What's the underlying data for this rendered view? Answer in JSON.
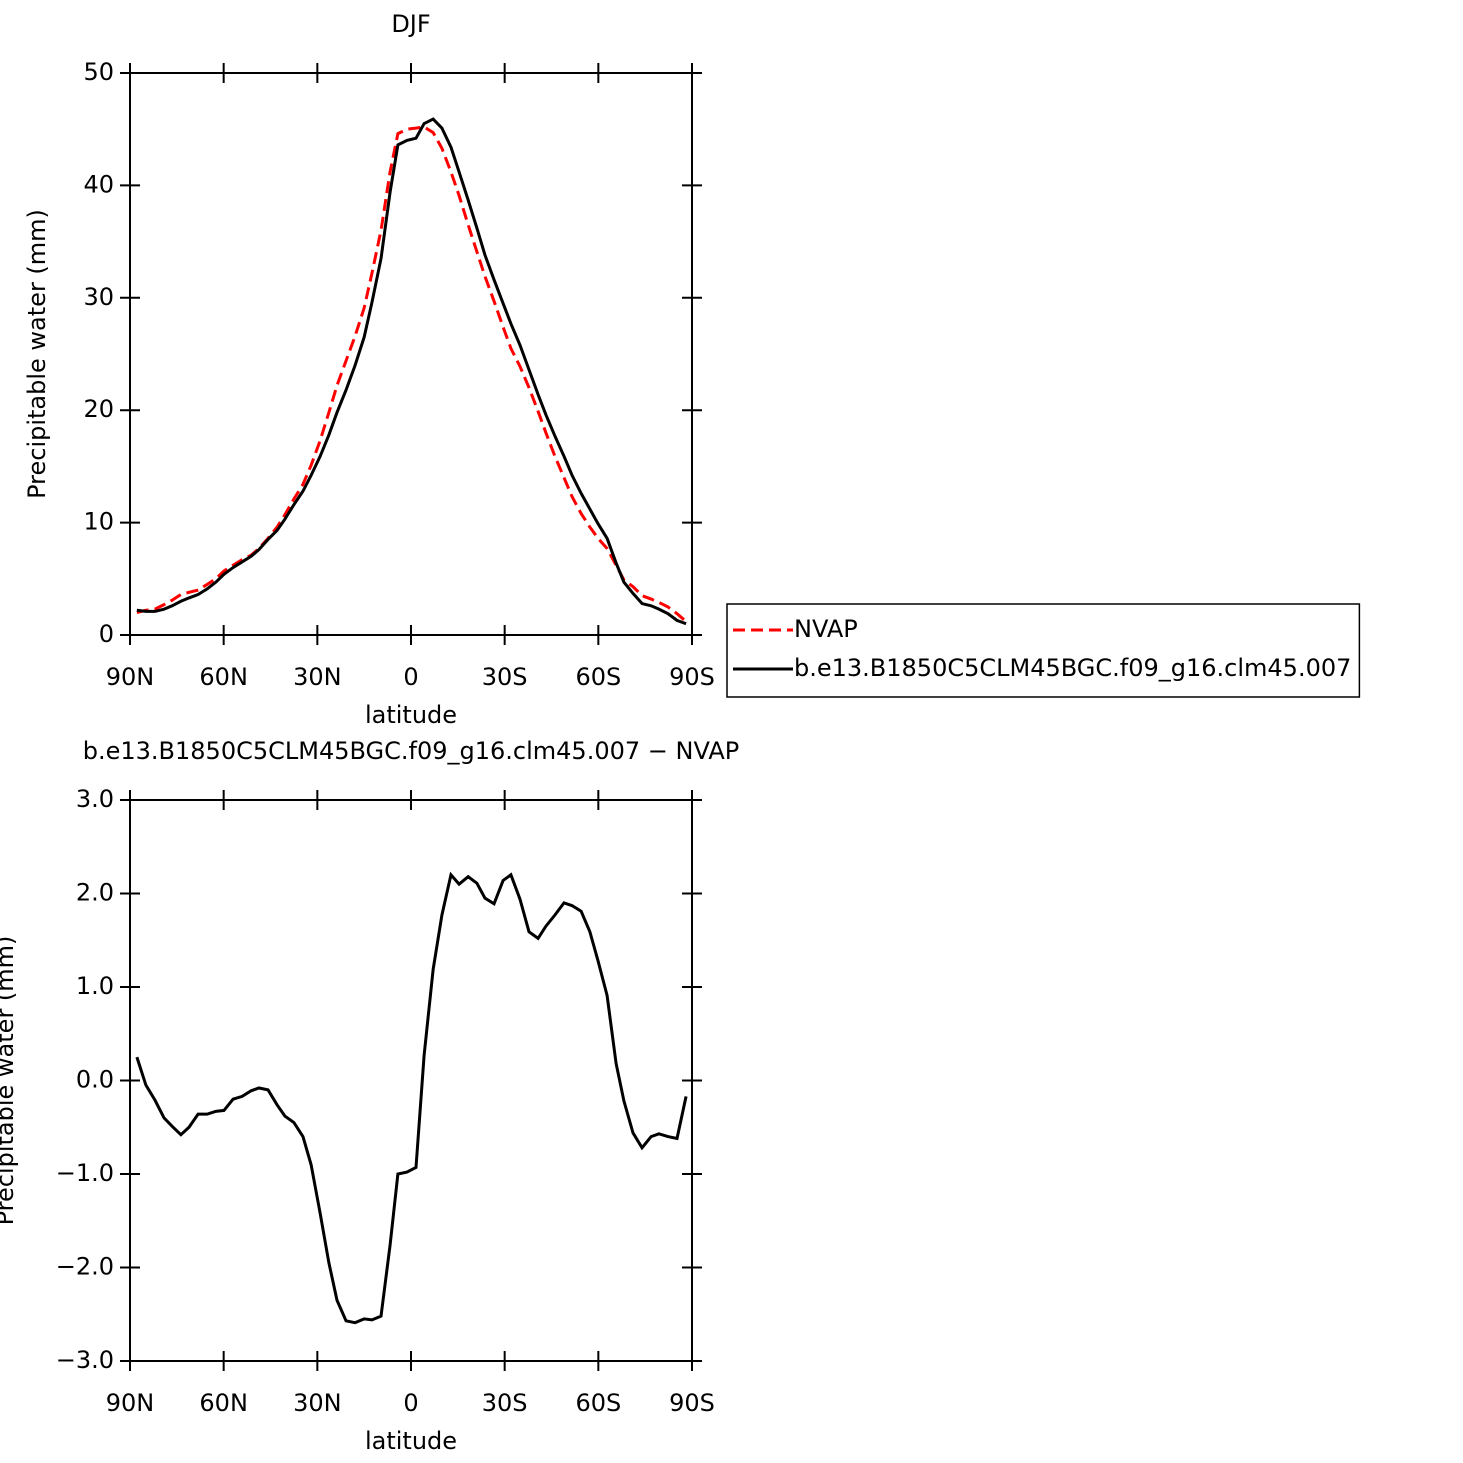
{
  "chart_data": [
    {
      "type": "line",
      "title": "DJF",
      "ylabel": "Precipitable water (mm)",
      "xlabel": "latitude",
      "x": [
        87.8,
        84.9,
        82.0,
        79.1,
        76.5,
        73.7,
        71.1,
        68.2,
        65.3,
        62.5,
        59.9,
        57.0,
        54.1,
        51.2,
        48.7,
        45.8,
        42.9,
        40.4,
        37.5,
        34.6,
        32.0,
        29.1,
        26.3,
        23.7,
        20.8,
        17.9,
        15.0,
        12.5,
        9.6,
        6.7,
        4.2,
        1.3,
        -1.6,
        -4.2,
        -7.1,
        -9.9,
        -12.8,
        -15.4,
        -18.3,
        -21.1,
        -23.7,
        -26.6,
        -29.5,
        -32.0,
        -34.9,
        -37.8,
        -40.7,
        -43.2,
        -46.1,
        -49.0,
        -51.6,
        -54.5,
        -57.3,
        -59.9,
        -62.8,
        -65.7,
        -68.2,
        -71.1,
        -74.0,
        -76.9,
        -79.4,
        -82.3,
        -85.2,
        -88.1
      ],
      "series": [
        {
          "name": "NVAP",
          "color": "#ff0000",
          "style": "dashed",
          "values": [
            2.0,
            2.2,
            2.3,
            2.7,
            3.1,
            3.6,
            3.8,
            4.0,
            4.5,
            5.0,
            5.7,
            6.2,
            6.7,
            7.1,
            7.7,
            8.6,
            9.6,
            10.7,
            12.1,
            13.4,
            15.1,
            17.3,
            19.8,
            22.2,
            24.4,
            26.6,
            29.1,
            32.2,
            36.0,
            41.2,
            44.6,
            45.0,
            45.1,
            45.2,
            44.7,
            43.3,
            41.2,
            39.1,
            36.5,
            34.1,
            31.9,
            29.7,
            27.4,
            25.5,
            23.9,
            22.0,
            19.9,
            18.0,
            15.9,
            14.0,
            12.3,
            10.8,
            9.6,
            8.6,
            7.7,
            6.2,
            4.9,
            4.3,
            3.5,
            3.2,
            2.9,
            2.5,
            1.9,
            1.2
          ]
        },
        {
          "name": "b.e13.B1850C5CLM45BGC.f09_g16.clm45.007",
          "color": "#000000",
          "style": "solid",
          "values": [
            2.2,
            2.1,
            2.1,
            2.3,
            2.6,
            3.0,
            3.3,
            3.6,
            4.1,
            4.7,
            5.4,
            6.0,
            6.5,
            7.0,
            7.6,
            8.5,
            9.3,
            10.3,
            11.6,
            12.8,
            14.2,
            15.9,
            17.8,
            19.8,
            21.8,
            24.0,
            26.5,
            29.6,
            33.5,
            39.4,
            43.6,
            44.0,
            44.2,
            45.5,
            45.9,
            45.1,
            43.4,
            41.2,
            38.7,
            36.2,
            33.8,
            31.6,
            29.5,
            27.7,
            25.8,
            23.6,
            21.4,
            19.6,
            17.7,
            15.9,
            14.2,
            12.6,
            11.2,
            9.9,
            8.6,
            6.4,
            4.7,
            3.7,
            2.8,
            2.6,
            2.3,
            1.9,
            1.3,
            1.0
          ]
        }
      ],
      "xlim": [
        90,
        -90
      ],
      "xticks": [
        {
          "value": 90,
          "label": "90N"
        },
        {
          "value": 60,
          "label": "60N"
        },
        {
          "value": 30,
          "label": "30N"
        },
        0,
        {
          "value": -30,
          "label": "30S"
        },
        {
          "value": -60,
          "label": "60S"
        },
        {
          "value": -90,
          "label": "90S"
        }
      ],
      "ylim": [
        0,
        50
      ],
      "yticks": [
        0,
        10,
        20,
        30,
        40,
        50
      ],
      "legend": "right"
    },
    {
      "type": "line",
      "title": "b.e13.B1850C5CLM45BGC.f09_g16.clm45.007 − NVAP",
      "ylabel": "Precipitable water (mm)",
      "xlabel": "latitude",
      "x": [
        87.8,
        84.9,
        82.0,
        79.1,
        76.5,
        73.7,
        71.1,
        68.2,
        65.3,
        62.5,
        59.9,
        57.0,
        54.1,
        51.2,
        48.7,
        45.8,
        42.9,
        40.4,
        37.5,
        34.6,
        32.0,
        29.1,
        26.3,
        23.7,
        20.8,
        17.9,
        15.0,
        12.5,
        9.6,
        6.7,
        4.2,
        1.3,
        -1.6,
        -4.2,
        -7.1,
        -9.9,
        -12.8,
        -15.4,
        -18.3,
        -21.1,
        -23.7,
        -26.6,
        -29.5,
        -32.0,
        -34.9,
        -37.8,
        -40.7,
        -43.2,
        -46.1,
        -49.0,
        -51.6,
        -54.5,
        -57.3,
        -59.9,
        -62.8,
        -65.7,
        -68.2,
        -71.1,
        -74.0,
        -76.9,
        -79.4,
        -82.3,
        -85.2,
        -88.1
      ],
      "values": [
        0.25,
        -0.05,
        -0.21,
        -0.4,
        -0.49,
        -0.58,
        -0.5,
        -0.36,
        -0.36,
        -0.33,
        -0.32,
        -0.2,
        -0.17,
        -0.11,
        -0.08,
        -0.1,
        -0.26,
        -0.38,
        -0.45,
        -0.6,
        -0.9,
        -1.42,
        -1.95,
        -2.35,
        -2.57,
        -2.59,
        -2.55,
        -2.56,
        -2.52,
        -1.76,
        -1.0,
        -0.98,
        -0.93,
        0.27,
        1.19,
        1.77,
        2.2,
        2.1,
        2.18,
        2.11,
        1.95,
        1.89,
        2.14,
        2.2,
        1.94,
        1.59,
        1.52,
        1.65,
        1.77,
        1.9,
        1.87,
        1.81,
        1.59,
        1.28,
        0.91,
        0.18,
        -0.22,
        -0.56,
        -0.72,
        -0.6,
        -0.57,
        -0.6,
        -0.62,
        -0.17
      ],
      "color": "#000000",
      "xlim": [
        90,
        -90
      ],
      "xticks": [
        {
          "value": 90,
          "label": "90N"
        },
        {
          "value": 60,
          "label": "60N"
        },
        {
          "value": 30,
          "label": "30N"
        },
        0,
        {
          "value": -30,
          "label": "30S"
        },
        {
          "value": -60,
          "label": "60S"
        },
        {
          "value": -90,
          "label": "90S"
        }
      ],
      "ylim": [
        -3,
        3
      ],
      "yticks": [
        {
          "value": -3,
          "label": "−3.0"
        },
        {
          "value": -2,
          "label": "−2.0"
        },
        {
          "value": -1,
          "label": "−1.0"
        },
        {
          "value": 0,
          "label": "0.0"
        },
        {
          "value": 1,
          "label": "1.0"
        },
        {
          "value": 2,
          "label": "2.0"
        },
        {
          "value": 3,
          "label": "3.0"
        }
      ]
    }
  ]
}
